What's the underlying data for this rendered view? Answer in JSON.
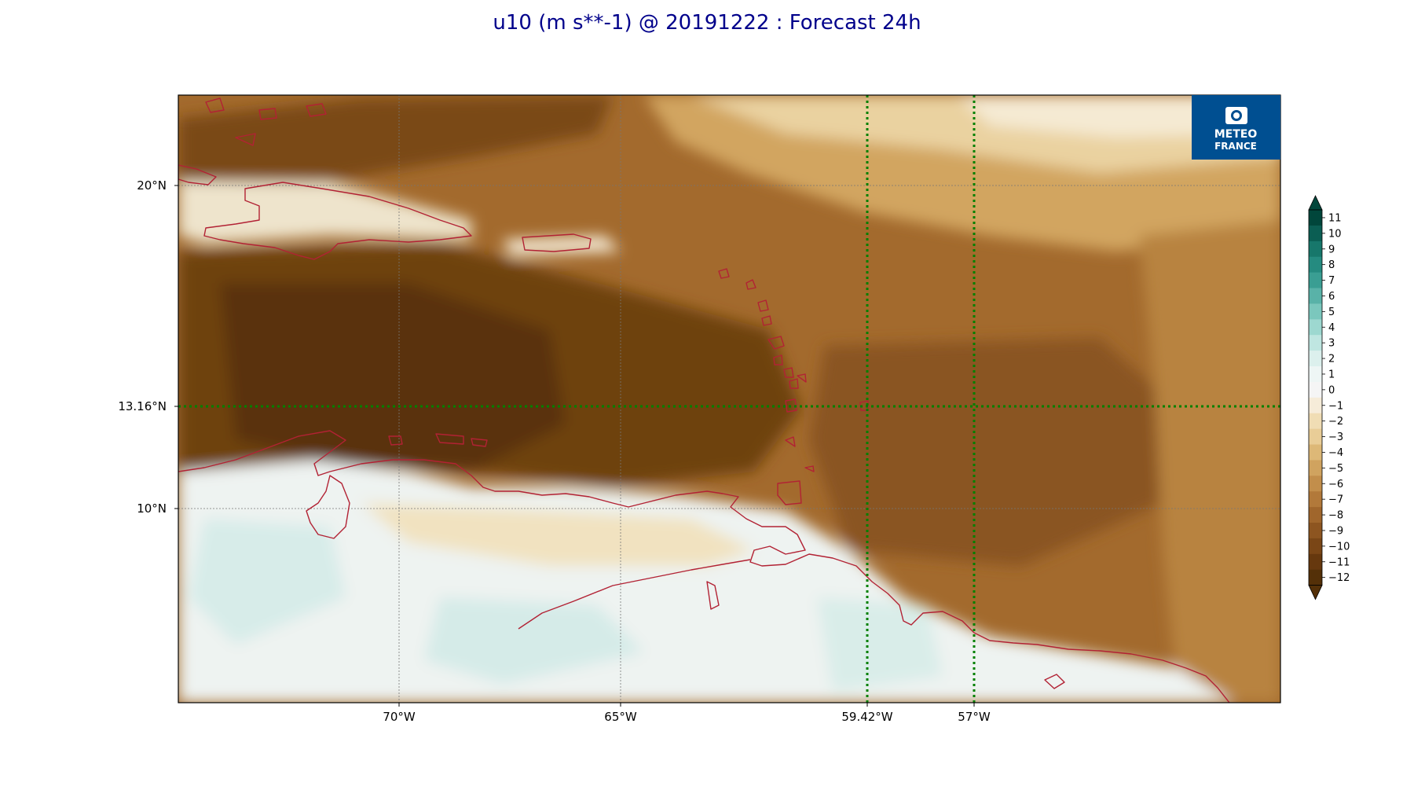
{
  "title": "u10 (m s**-1) @ 20191222 : Forecast 24h",
  "map": {
    "lon_range": [
      -75,
      -50
    ],
    "lat_range": [
      4,
      22.8
    ],
    "lon_ticks": [
      "70°W",
      "65°W",
      "59.42°W",
      "57°W"
    ],
    "lat_ticks": [
      "20°N",
      "13.16°N",
      "10°N"
    ],
    "highlight_lon": [
      "59.42°W",
      "57°W"
    ],
    "highlight_lat": [
      "13.16°N"
    ],
    "highlight_color": "#008000",
    "coastline_color": "#b22234"
  },
  "logo": {
    "line1": "METEO",
    "line2": "FRANCE",
    "background": "#004f91"
  },
  "colorbar": {
    "labels": [
      "11",
      "10",
      "9",
      "8",
      "7",
      "6",
      "5",
      "4",
      "3",
      "2",
      "1",
      "0",
      "−1",
      "−2",
      "−3",
      "−4",
      "−5",
      "−6",
      "−7",
      "−8",
      "−9",
      "−10",
      "−11",
      "−12"
    ],
    "colors": [
      "#01463b",
      "#0b5e53",
      "#17776b",
      "#258b80",
      "#3a9e93",
      "#59b2a8",
      "#7bc7bd",
      "#9dd8d0",
      "#bfe6e1",
      "#dcf0ed",
      "#eef6f5",
      "#f5f5f5",
      "#f6ecd9",
      "#f0ddb4",
      "#e9cd97",
      "#ddb877",
      "#d0a35f",
      "#c28e4b",
      "#b2793a",
      "#a0662c",
      "#8d5520",
      "#7a4616",
      "#66380e",
      "#543008"
    ]
  }
}
